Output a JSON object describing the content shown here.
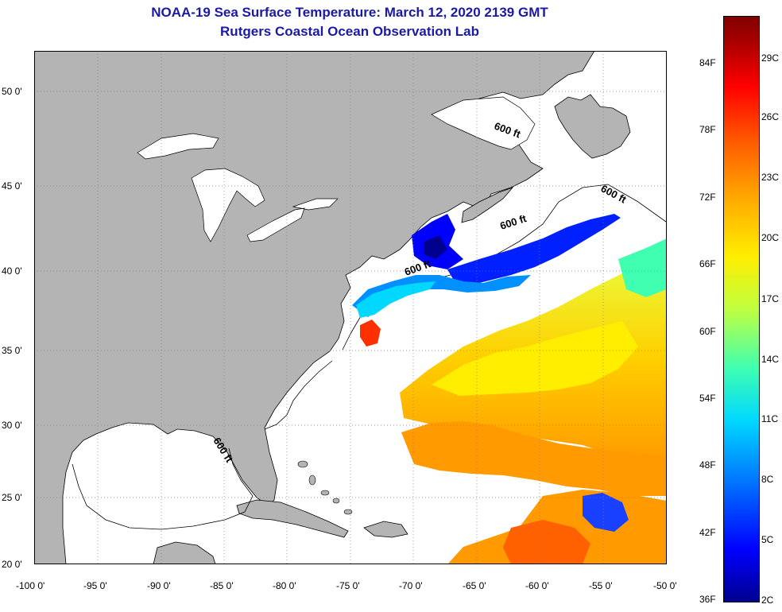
{
  "title": {
    "line1": "NOAA-19 Sea Surface Temperature:  March 12, 2020 2139 GMT",
    "line2": "Rutgers Coastal Ocean Observation Lab"
  },
  "map": {
    "lat_labels": [
      "50 0'",
      "45 0'",
      "40 0'",
      "35 0'",
      "30 0'",
      "25 0'",
      "20 0'"
    ],
    "lon_labels": [
      "-100 0'",
      "-95 0'",
      "-90 0'",
      "-85 0'",
      "-80 0'",
      "-75 0'",
      "-70 0'",
      "-65 0'",
      "-60 0'",
      "-55 0'",
      "-50 0'"
    ],
    "contour_labels": [
      "600 ft",
      "600 ft",
      "600 ft",
      "600 ft",
      "600 ft"
    ],
    "colors": {
      "land": "#b4b4b4",
      "ocean": "#ffffff",
      "grid": "#808080"
    }
  },
  "colorbar": {
    "fahrenheit_labels": [
      "84F",
      "78F",
      "72F",
      "66F",
      "60F",
      "54F",
      "48F",
      "42F",
      "36F"
    ],
    "celsius_labels": [
      "29C",
      "26C",
      "23C",
      "20C",
      "17C",
      "14C",
      "11C",
      "8C",
      "5C",
      "2C"
    ],
    "gradient": [
      "#00008f",
      "#0000ff",
      "#0070ff",
      "#00d8ff",
      "#40ffb0",
      "#c0ff40",
      "#ffee00",
      "#ffb000",
      "#ff6000",
      "#ff0000",
      "#b00000",
      "#800000"
    ]
  }
}
